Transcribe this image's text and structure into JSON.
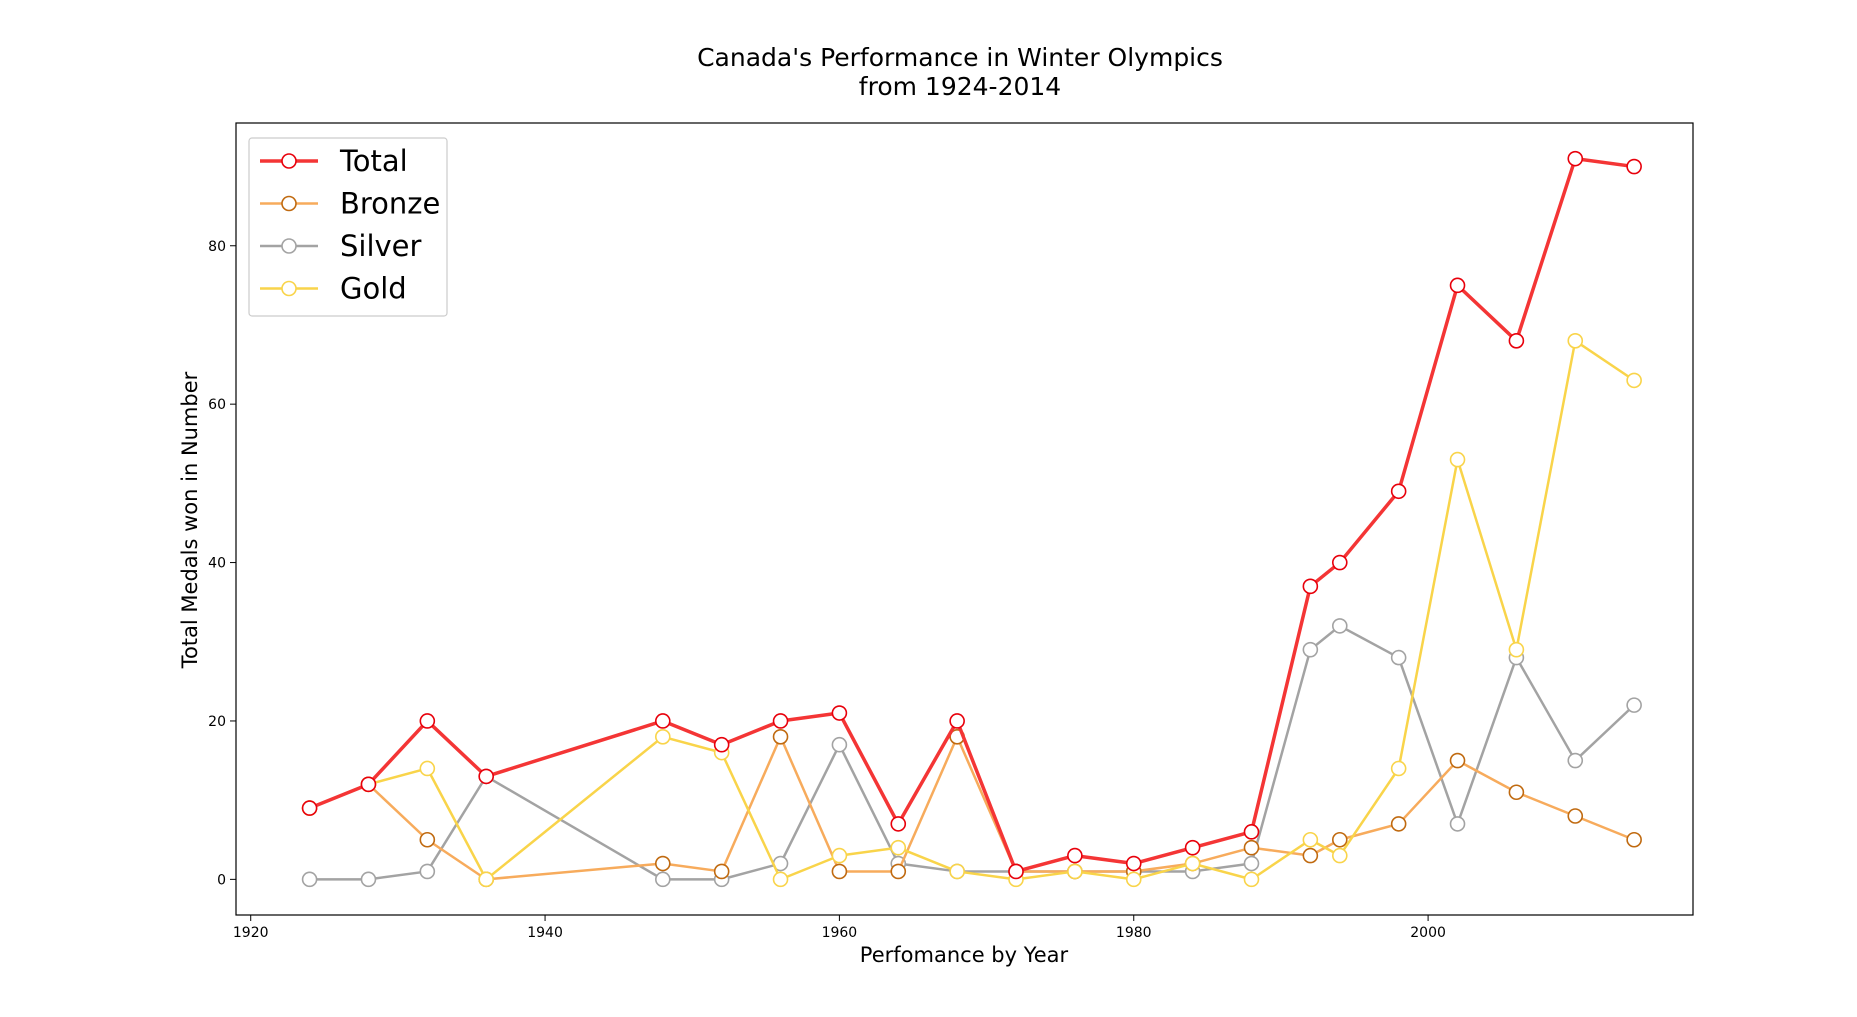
{
  "chart_data": {
    "type": "line",
    "title_line1": "Canada's Performance in Winter Olympics",
    "title_line2": "from 1924-2014",
    "xlabel": "Perfomance by Year",
    "ylabel": "Total Medals won in Number",
    "xlim": [
      1919,
      2018
    ],
    "ylim": [
      -4.5,
      95.5
    ],
    "x_ticks": [
      1920,
      1940,
      1960,
      1980,
      2000
    ],
    "y_ticks": [
      0,
      20,
      40,
      60,
      80
    ],
    "legend_position": "top-left",
    "grid": false,
    "x": [
      1924,
      1928,
      1932,
      1936,
      1948,
      1952,
      1956,
      1960,
      1964,
      1968,
      1972,
      1976,
      1980,
      1984,
      1988,
      1992,
      1994,
      1998,
      2002,
      2006,
      2010,
      2014
    ],
    "series": [
      {
        "name": "Total",
        "color": "#f43535",
        "marker_edge": "#e8000b",
        "line_width": 3.5,
        "values": [
          9,
          12,
          20,
          13,
          20,
          17,
          20,
          21,
          7,
          20,
          1,
          3,
          2,
          4,
          6,
          37,
          40,
          49,
          75,
          68,
          91,
          90
        ]
      },
      {
        "name": "Bronze",
        "color": "#f7ab5c",
        "marker_edge": "#c06a10",
        "line_width": 2.5,
        "values": [
          9,
          12,
          5,
          0,
          2,
          1,
          18,
          1,
          1,
          18,
          1,
          1,
          1,
          2,
          4,
          3,
          5,
          7,
          15,
          11,
          8,
          5
        ]
      },
      {
        "name": "Silver",
        "color": "#a3a3a3",
        "marker_edge": "#a3a3a3",
        "line_width": 2.5,
        "values": [
          0,
          0,
          1,
          13,
          0,
          0,
          2,
          17,
          2,
          1,
          1,
          1,
          1,
          1,
          2,
          29,
          32,
          28,
          7,
          28,
          15,
          22
        ]
      },
      {
        "name": "Gold",
        "color": "#f9d44a",
        "marker_edge": "#f9d44a",
        "line_width": 2.5,
        "values": [
          9,
          12,
          14,
          0,
          18,
          16,
          0,
          3,
          4,
          1,
          0,
          1,
          0,
          2,
          0,
          5,
          3,
          14,
          53,
          29,
          68,
          63
        ]
      }
    ]
  }
}
